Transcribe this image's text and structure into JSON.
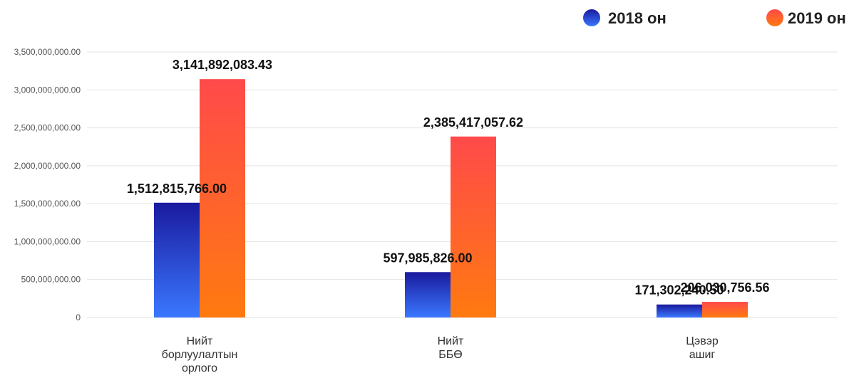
{
  "chart_data": {
    "type": "bar",
    "categories": [
      [
        "Нийт",
        "борлуулалтын",
        "орлого"
      ],
      [
        "Нийт",
        "ББӨ"
      ],
      [
        "Цэвэр",
        "ашиг"
      ]
    ],
    "series": [
      {
        "name": "2018 он",
        "values": [
          1512815766.0,
          597985826.0,
          171302240.5
        ],
        "labels": [
          "1,512,815,766.00",
          "597,985,826.00",
          "171,302,240.50"
        ],
        "color_top": "#1a1a9e",
        "color_bottom": "#3a78ff"
      },
      {
        "name": "2019 он",
        "values": [
          3141892083.43,
          2385417057.62,
          206030756.56
        ],
        "labels": [
          "3,141,892,083.43",
          "2,385,417,057.62",
          "206,030,756.56"
        ],
        "color_top": "#ff4a4a",
        "color_bottom": "#ff7a10"
      }
    ],
    "ylim": [
      0,
      3500000000
    ],
    "yticks": [
      {
        "value": 0,
        "label": "0"
      },
      {
        "value": 500000000,
        "label": "500,000,000.00"
      },
      {
        "value": 1000000000,
        "label": "1,000,000,000.00"
      },
      {
        "value": 1500000000,
        "label": "1,500,000,000.00"
      },
      {
        "value": 2000000000,
        "label": "2,000,000,000.00"
      },
      {
        "value": 2500000000,
        "label": "2,500,000,000.00"
      },
      {
        "value": 3000000000,
        "label": "3,000,000,000.00"
      },
      {
        "value": 3500000000,
        "label": "3,500,000,000.00"
      }
    ],
    "grid": true,
    "legend_position": "top-right"
  }
}
